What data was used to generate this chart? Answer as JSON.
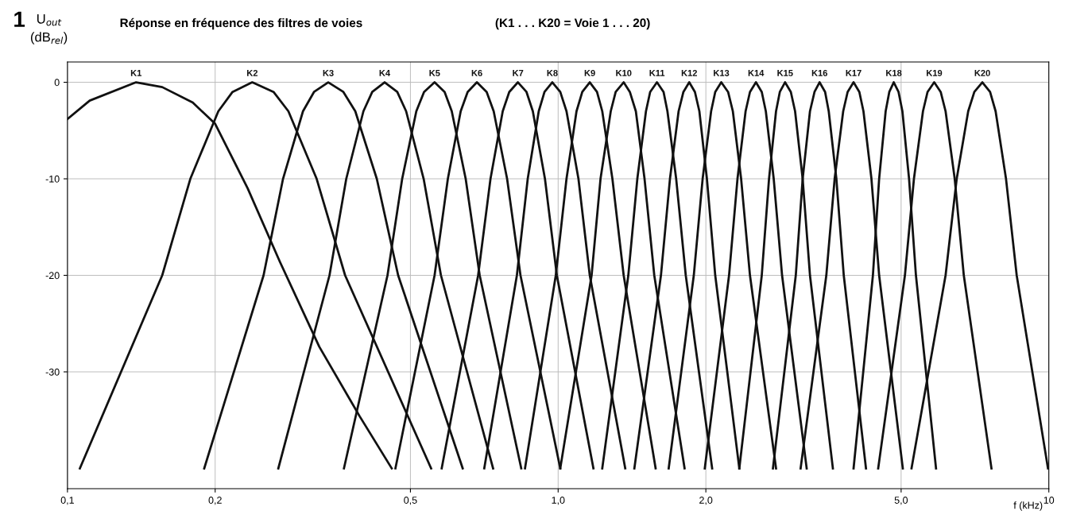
{
  "chart_data": {
    "type": "line",
    "title": "Réponse en fréquence des filtres de voies",
    "subtitle": "(K1 . . . K20 = Voie 1 . . . 20)",
    "ylabel": "U$_{out}$\n(dB$_{rel}$)",
    "xlabel": "f (kHz)",
    "annotations": [
      "1"
    ],
    "log": "x",
    "xlim": [
      0.1,
      10
    ],
    "ylim": [
      -42.1,
      2.1
    ],
    "xticks": [
      {
        "value": 0.1,
        "label": "0,1"
      },
      {
        "value": 0.2,
        "label": "0,2"
      },
      {
        "value": 0.5,
        "label": "0,5"
      },
      {
        "value": 1.0,
        "label": "1,0"
      },
      {
        "value": 2.0,
        "label": "2,0"
      },
      {
        "value": 5.0,
        "label": "5,0"
      },
      10
    ],
    "yticks": [
      0,
      -10,
      -20,
      -30
    ],
    "grid": true,
    "legend": false,
    "marker": "none",
    "line_style": "solid",
    "series": [
      {
        "name": "K1",
        "color": "#111111",
        "x": [
          0.1,
          0.111,
          0.138,
          0.156,
          0.18,
          0.2,
          0.233,
          0.271,
          0.326,
          0.394,
          0.458
        ],
        "values": [
          -3.8,
          -1.9,
          0,
          -0.5,
          -2.1,
          -4.3,
          -11,
          -18.6,
          -27.4,
          -34.6,
          -40
        ]
      },
      {
        "name": "K2",
        "color": "#111111",
        "x": [
          0.106,
          0.156,
          0.178,
          0.203,
          0.217,
          0.238,
          0.263,
          0.282,
          0.322,
          0.368,
          0.551
        ],
        "values": [
          -40,
          -20,
          -10,
          -3,
          -1,
          0,
          -1,
          -3,
          -10,
          -20,
          -40
        ]
      },
      {
        "name": "K3",
        "color": "#111111",
        "x": [
          0.19,
          0.251,
          0.275,
          0.302,
          0.318,
          0.34,
          0.365,
          0.386,
          0.427,
          0.472,
          0.639
        ],
        "values": [
          -40,
          -20,
          -10,
          -3,
          -1,
          0,
          -1,
          -3,
          -10,
          -20,
          -40
        ]
      },
      {
        "name": "K4",
        "color": "#111111",
        "x": [
          0.269,
          0.342,
          0.37,
          0.401,
          0.418,
          0.443,
          0.47,
          0.49,
          0.532,
          0.577,
          0.737
        ],
        "values": [
          -40,
          -20,
          -10,
          -3,
          -1,
          0,
          -1,
          -3,
          -10,
          -20,
          -40
        ]
      },
      {
        "name": "K5",
        "color": "#111111",
        "x": [
          0.366,
          0.449,
          0.481,
          0.514,
          0.533,
          0.56,
          0.587,
          0.607,
          0.648,
          0.692,
          0.841
        ],
        "values": [
          -40,
          -20,
          -10,
          -3,
          -1,
          0,
          -1,
          -3,
          -10,
          -20,
          -40
        ]
      },
      {
        "name": "K6",
        "color": "#111111",
        "x": [
          0.466,
          0.56,
          0.596,
          0.633,
          0.654,
          0.683,
          0.715,
          0.739,
          0.787,
          0.838,
          1.01
        ],
        "values": [
          -40,
          -20,
          -10,
          -3,
          -1,
          0,
          -1,
          -3,
          -10,
          -20,
          -40
        ]
      },
      {
        "name": "K7",
        "color": "#111111",
        "x": [
          0.579,
          0.687,
          0.728,
          0.771,
          0.795,
          0.828,
          0.862,
          0.888,
          0.94,
          0.994,
          1.18
        ],
        "values": [
          -40,
          -20,
          -10,
          -3,
          -1,
          0,
          -1,
          -3,
          -10,
          -20,
          -40
        ]
      },
      {
        "name": "K8",
        "color": "#111111",
        "x": [
          0.707,
          0.824,
          0.867,
          0.913,
          0.938,
          0.973,
          1.01,
          1.04,
          1.1,
          1.16,
          1.37
        ],
        "values": [
          -40,
          -20,
          -10,
          -3,
          -1,
          0,
          -1,
          -3,
          -10,
          -20,
          -40
        ]
      },
      {
        "name": "K9",
        "color": "#111111",
        "x": [
          0.856,
          0.989,
          1.04,
          1.09,
          1.12,
          1.16,
          1.2,
          1.23,
          1.29,
          1.36,
          1.58
        ],
        "values": [
          -40,
          -20,
          -10,
          -3,
          -1,
          0,
          -1,
          -3,
          -10,
          -20,
          -40
        ]
      },
      {
        "name": "K10",
        "color": "#111111",
        "x": [
          1.01,
          1.17,
          1.22,
          1.28,
          1.31,
          1.36,
          1.4,
          1.44,
          1.5,
          1.57,
          1.81
        ],
        "values": [
          -40,
          -20,
          -10,
          -3,
          -1,
          0,
          -1,
          -3,
          -10,
          -20,
          -40
        ]
      },
      {
        "name": "K11",
        "color": "#111111",
        "x": [
          1.23,
          1.39,
          1.45,
          1.51,
          1.54,
          1.59,
          1.64,
          1.67,
          1.74,
          1.82,
          2.06
        ],
        "values": [
          -40,
          -20,
          -10,
          -3,
          -1,
          0,
          -1,
          -3,
          -10,
          -20,
          -40
        ]
      },
      {
        "name": "K12",
        "color": "#111111",
        "x": [
          1.43,
          1.62,
          1.69,
          1.76,
          1.8,
          1.85,
          1.9,
          1.94,
          2.01,
          2.09,
          2.34
        ],
        "values": [
          -40,
          -20,
          -10,
          -3,
          -1,
          0,
          -1,
          -3,
          -10,
          -20,
          -40
        ]
      },
      {
        "name": "K13",
        "color": "#111111",
        "x": [
          1.68,
          1.89,
          1.97,
          2.05,
          2.09,
          2.15,
          2.22,
          2.27,
          2.36,
          2.46,
          2.78
        ],
        "values": [
          -40,
          -20,
          -10,
          -3,
          -1,
          0,
          -1,
          -3,
          -10,
          -20,
          -40
        ]
      },
      {
        "name": "K14",
        "color": "#111111",
        "x": [
          1.99,
          2.23,
          2.32,
          2.41,
          2.46,
          2.53,
          2.6,
          2.65,
          2.75,
          2.86,
          3.21
        ],
        "values": [
          -40,
          -20,
          -10,
          -3,
          -1,
          0,
          -1,
          -3,
          -10,
          -20,
          -40
        ]
      },
      {
        "name": "K15",
        "color": "#111111",
        "x": [
          2.34,
          2.6,
          2.69,
          2.78,
          2.83,
          2.9,
          2.98,
          3.04,
          3.15,
          3.26,
          3.63
        ],
        "values": [
          -40,
          -20,
          -10,
          -3,
          -1,
          0,
          -1,
          -3,
          -10,
          -20,
          -40
        ]
      },
      {
        "name": "K16",
        "color": "#111111",
        "x": [
          2.74,
          3.05,
          3.15,
          3.26,
          3.33,
          3.41,
          3.5,
          3.56,
          3.69,
          3.82,
          4.24
        ],
        "values": [
          -40,
          -20,
          -10,
          -3,
          -1,
          0,
          -1,
          -3,
          -10,
          -20,
          -40
        ]
      },
      {
        "name": "K17",
        "color": "#111111",
        "x": [
          3.12,
          3.52,
          3.66,
          3.81,
          3.89,
          4.0,
          4.11,
          4.19,
          4.35,
          4.51,
          5.04
        ],
        "values": [
          -40,
          -20,
          -10,
          -3,
          -1,
          0,
          -1,
          -3,
          -10,
          -20,
          -40
        ]
      },
      {
        "name": "K18",
        "color": "#111111",
        "x": [
          4.0,
          4.38,
          4.51,
          4.65,
          4.73,
          4.83,
          4.94,
          5.03,
          5.19,
          5.36,
          5.89
        ],
        "values": [
          -40,
          -20,
          -10,
          -3,
          -1,
          0,
          -1,
          -3,
          -10,
          -20,
          -40
        ]
      },
      {
        "name": "K19",
        "color": "#111111",
        "x": [
          4.49,
          5.09,
          5.31,
          5.54,
          5.66,
          5.84,
          6.02,
          6.16,
          6.43,
          6.71,
          7.64
        ],
        "values": [
          -40,
          -20,
          -10,
          -3,
          -1,
          0,
          -1,
          -3,
          -10,
          -20,
          -40
        ]
      },
      {
        "name": "K20",
        "color": "#111111",
        "x": [
          5.25,
          6.16,
          6.49,
          6.85,
          7.05,
          7.32,
          7.59,
          7.79,
          8.18,
          8.6,
          9.96
        ],
        "values": [
          -40,
          -20,
          -10,
          -3,
          -1,
          0,
          -1,
          -3,
          -10,
          -20,
          -40
        ]
      }
    ]
  }
}
